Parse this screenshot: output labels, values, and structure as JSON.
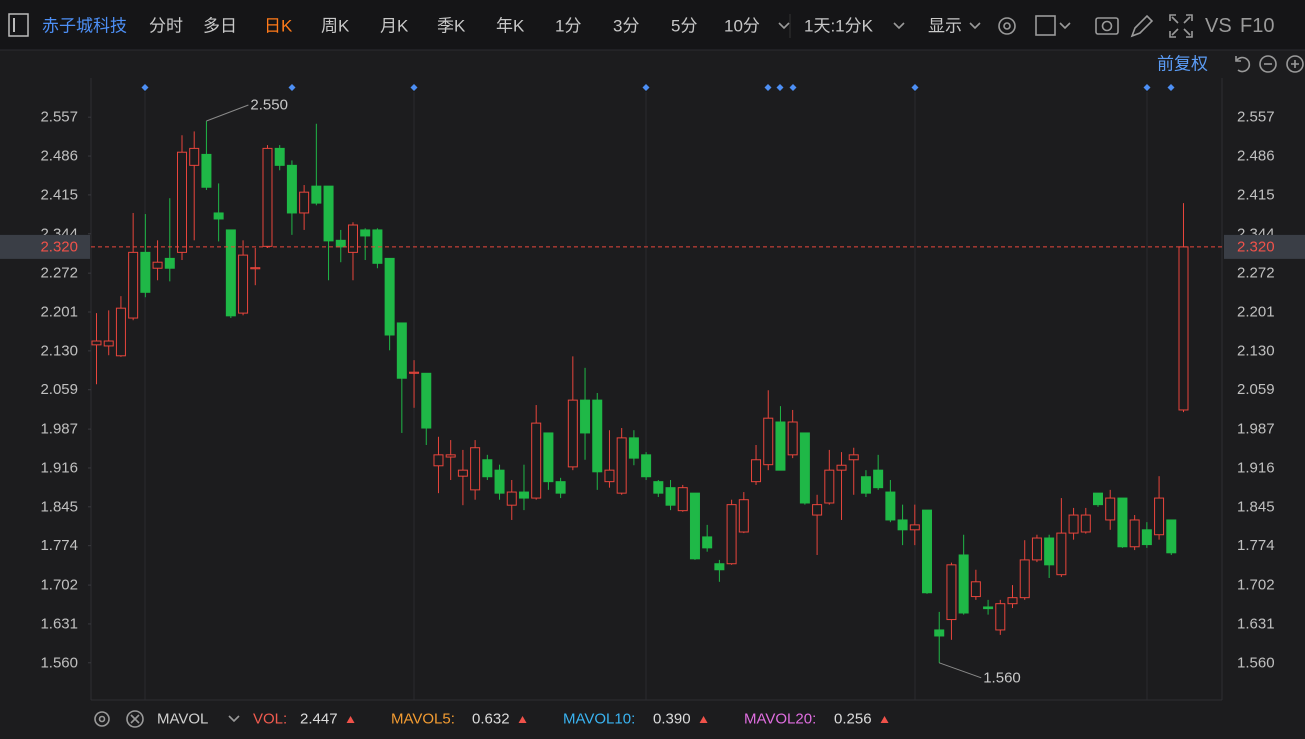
{
  "toolbar": {
    "stock_name": "赤子城科技",
    "tabs": [
      "分时",
      "多日",
      "日K",
      "周K",
      "月K",
      "季K",
      "年K",
      "1分",
      "3分",
      "5分",
      "10分"
    ],
    "active_tab": 2,
    "period_menu": "1天:1分K",
    "display_menu": "显示",
    "vs": "VS",
    "f10": "F10"
  },
  "adjust_mode": "前复权",
  "chart_data": {
    "type": "candlestick",
    "up_color": "#e8453c",
    "down_color": "#1fb847",
    "open": [
      2.141,
      2.139,
      2.121,
      2.19,
      2.31,
      2.281,
      2.299,
      2.31,
      2.469,
      2.489,
      2.382,
      2.351,
      2.199,
      2.28,
      2.321,
      2.5,
      2.469,
      2.382,
      2.431,
      2.431,
      2.332,
      2.31,
      2.351,
      2.351,
      2.299,
      2.181,
      2.089,
      2.089,
      1.92,
      1.936,
      1.901,
      1.876,
      1.931,
      1.912,
      1.848,
      1.872,
      1.861,
      1.98,
      1.891,
      1.918,
      2.04,
      2.04,
      1.891,
      1.87,
      1.971,
      1.94,
      1.891,
      1.88,
      1.838,
      1.87,
      1.79,
      1.741,
      1.741,
      1.799,
      1.891,
      1.922,
      2.0,
      1.94,
      1.98,
      1.83,
      1.852,
      1.912,
      1.931,
      1.9,
      1.912,
      1.872,
      1.821,
      1.803,
      1.839,
      1.62,
      1.639,
      1.757,
      1.681,
      1.662,
      1.62,
      1.668,
      1.679,
      1.748,
      1.788,
      1.721,
      1.797,
      1.799,
      1.87,
      1.821,
      1.861,
      1.772,
      1.803,
      1.794,
      1.821,
      2.022
    ],
    "high": [
      2.199,
      2.204,
      2.23,
      2.382,
      2.38,
      2.332,
      2.409,
      2.524,
      2.531,
      2.55,
      2.436,
      2.351,
      2.332,
      2.318,
      2.506,
      2.506,
      2.478,
      2.433,
      2.545,
      2.431,
      2.351,
      2.365,
      2.354,
      2.354,
      2.299,
      2.181,
      2.113,
      2.089,
      1.973,
      1.967,
      1.949,
      1.967,
      1.94,
      1.922,
      1.894,
      1.922,
      2.031,
      1.98,
      1.898,
      2.12,
      2.099,
      2.053,
      1.985,
      1.989,
      1.985,
      1.945,
      1.894,
      1.894,
      1.885,
      1.87,
      1.812,
      1.748,
      1.858,
      1.872,
      1.958,
      2.058,
      2.029,
      2.022,
      1.98,
      1.867,
      1.949,
      1.945,
      1.953,
      1.912,
      1.94,
      1.894,
      1.849,
      1.849,
      1.839,
      1.653,
      1.743,
      1.794,
      1.73,
      1.675,
      1.675,
      1.702,
      1.784,
      1.794,
      1.794,
      1.861,
      1.843,
      1.843,
      1.87,
      1.876,
      1.861,
      1.83,
      1.817,
      1.901,
      1.821,
      2.4
    ],
    "low": [
      2.069,
      2.122,
      2.119,
      2.186,
      2.228,
      2.259,
      2.257,
      2.296,
      2.332,
      2.424,
      2.33,
      2.19,
      2.195,
      2.25,
      2.318,
      2.46,
      2.342,
      2.351,
      2.396,
      2.259,
      2.292,
      2.259,
      2.296,
      2.281,
      2.131,
      1.98,
      2.026,
      1.958,
      1.87,
      1.894,
      1.848,
      1.858,
      1.894,
      1.858,
      1.821,
      1.839,
      1.858,
      1.876,
      1.861,
      1.912,
      1.931,
      1.876,
      1.88,
      1.867,
      1.921,
      1.894,
      1.863,
      1.839,
      1.836,
      1.748,
      1.763,
      1.708,
      1.739,
      1.797,
      1.885,
      1.912,
      1.912,
      1.934,
      1.849,
      1.757,
      1.849,
      1.821,
      1.867,
      1.863,
      1.876,
      1.817,
      1.775,
      1.775,
      1.686,
      1.56,
      1.602,
      1.648,
      1.675,
      1.648,
      1.611,
      1.66,
      1.675,
      1.744,
      1.715,
      1.717,
      1.785,
      1.796,
      1.845,
      1.803,
      1.77,
      1.766,
      1.77,
      1.785,
      1.757,
      2.018
    ],
    "close": [
      2.148,
      2.148,
      2.208,
      2.31,
      2.237,
      2.292,
      2.281,
      2.493,
      2.5,
      2.429,
      2.371,
      2.194,
      2.305,
      2.282,
      2.5,
      2.469,
      2.382,
      2.42,
      2.4,
      2.331,
      2.32,
      2.36,
      2.34,
      2.29,
      2.159,
      2.08,
      2.091,
      1.989,
      1.94,
      1.94,
      1.912,
      1.953,
      1.9,
      1.87,
      1.872,
      1.861,
      1.998,
      1.891,
      1.87,
      2.04,
      1.98,
      1.909,
      1.912,
      1.971,
      1.934,
      1.9,
      1.87,
      1.848,
      1.88,
      1.75,
      1.77,
      1.73,
      1.849,
      1.858,
      1.931,
      2.007,
      1.912,
      2.0,
      1.852,
      1.849,
      1.912,
      1.921,
      1.94,
      1.87,
      1.88,
      1.821,
      1.803,
      1.812,
      1.688,
      1.609,
      1.739,
      1.651,
      1.708,
      1.659,
      1.668,
      1.679,
      1.748,
      1.788,
      1.739,
      1.797,
      1.83,
      1.83,
      1.849,
      1.861,
      1.772,
      1.821,
      1.776,
      1.861,
      1.761,
      2.32
    ],
    "ylim": [
      1.492,
      2.667
    ],
    "yticks": [
      2.557,
      2.486,
      2.415,
      2.344,
      2.272,
      2.201,
      {
        "value": 2.13,
        "label": "2.130"
      },
      2.059,
      1.987,
      1.916,
      1.845,
      1.774,
      1.702,
      1.631,
      {
        "value": 1.56,
        "label": "1.560"
      }
    ],
    "last_price": {
      "value": 2.32,
      "label": "2.320"
    },
    "max_label": {
      "value": 2.55,
      "label": "2.550"
    },
    "min_label": {
      "value": 1.56,
      "label": "1.560"
    }
  },
  "indicator_bar": {
    "name": "MAVOL",
    "items": [
      {
        "name": "VOL:",
        "value": "2.447",
        "color": "#f05b4f"
      },
      {
        "name": "MAVOL5:",
        "value": "0.632",
        "color": "#f39c32"
      },
      {
        "name": "MAVOL10:",
        "value": "0.390",
        "color": "#3ab4f2"
      },
      {
        "name": "MAVOL20:",
        "value": "0.256",
        "color": "#e06ee0"
      }
    ]
  }
}
